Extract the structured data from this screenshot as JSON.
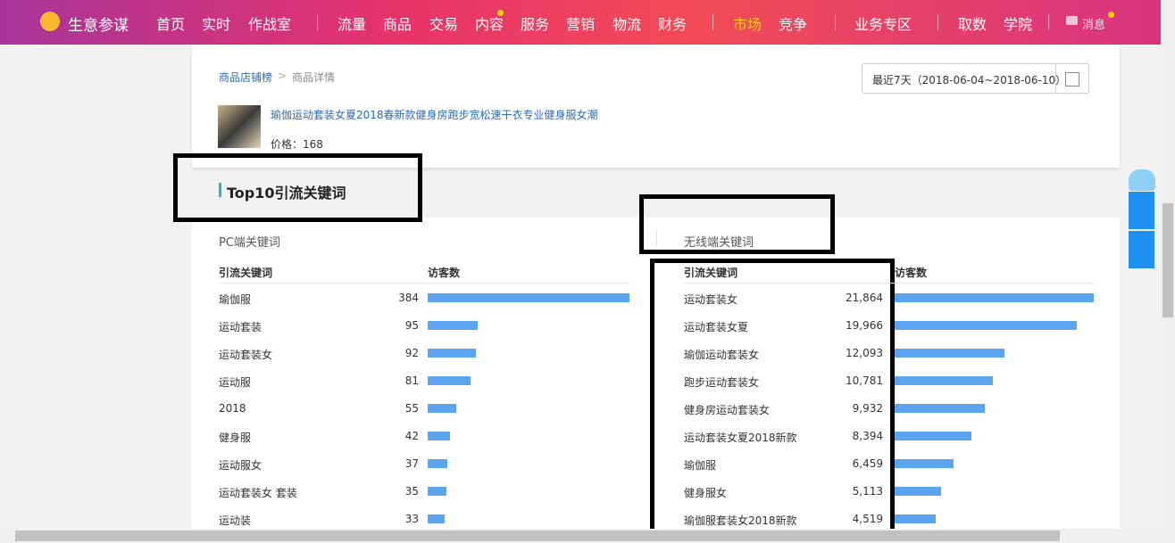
{
  "nav": {
    "brand": "生意参谋",
    "items": [
      "首页",
      "实时",
      "作战室",
      "流量",
      "商品",
      "交易",
      "内容",
      "服务",
      "营销",
      "物流",
      "财务",
      "市场",
      "竞争",
      "业务专区",
      "取数",
      "学院"
    ],
    "message": "消息"
  },
  "breadcrumb": [
    "商品店铺榜",
    "商品详情"
  ],
  "date_range": "最近7天（2018-06-04~2018-06-10）",
  "product": {
    "title": "瑜伽运动套装女夏2018春新款健身房跑步宽松速干衣专业健身服女潮",
    "price": "价格：168"
  },
  "section_title": "Top10引流关键词",
  "pc": {
    "title": "PC端关键词",
    "columns": [
      "引流关键词",
      "访客数"
    ],
    "rows": [
      {
        "keyword": "瑜伽服",
        "visitors": 384
      },
      {
        "keyword": "运动套装",
        "visitors": 95
      },
      {
        "keyword": "运动套装女",
        "visitors": 92
      },
      {
        "keyword": "运动服",
        "visitors": 81
      },
      {
        "keyword": "2018",
        "visitors": 55
      },
      {
        "keyword": "健身服",
        "visitors": 42
      },
      {
        "keyword": "运动服女",
        "visitors": 37
      },
      {
        "keyword": "运动套装女 套装",
        "visitors": 35
      },
      {
        "keyword": "运动装",
        "visitors": 33
      }
    ]
  },
  "mobile": {
    "title": "无线端关键词",
    "columns": [
      "引流关键词",
      "访客数"
    ],
    "rows": [
      {
        "keyword": "运动套装女",
        "visitors": {
          "value": 21864,
          "label": "21,864"
        }
      },
      {
        "keyword": "运动套装女夏",
        "visitors": {
          "value": 19966,
          "label": "19,966"
        }
      },
      {
        "keyword": "瑜伽运动套装女",
        "visitors": {
          "value": 12093,
          "label": "12,093"
        }
      },
      {
        "keyword": "跑步运动套装女",
        "visitors": {
          "value": 10781,
          "label": "10,781"
        }
      },
      {
        "keyword": "健身房运动套装女",
        "visitors": {
          "value": 9932,
          "label": "9,932"
        }
      },
      {
        "keyword": "运动套装女夏2018新款",
        "visitors": {
          "value": 8394,
          "label": "8,394"
        }
      },
      {
        "keyword": "瑜伽服",
        "visitors": {
          "value": 6459,
          "label": "6,459"
        }
      },
      {
        "keyword": "健身服女",
        "visitors": {
          "value": 5113,
          "label": "5,113"
        }
      },
      {
        "keyword": "瑜伽服套装女2018新款",
        "visitors": {
          "value": 4519,
          "label": "4,519"
        }
      }
    ]
  }
}
